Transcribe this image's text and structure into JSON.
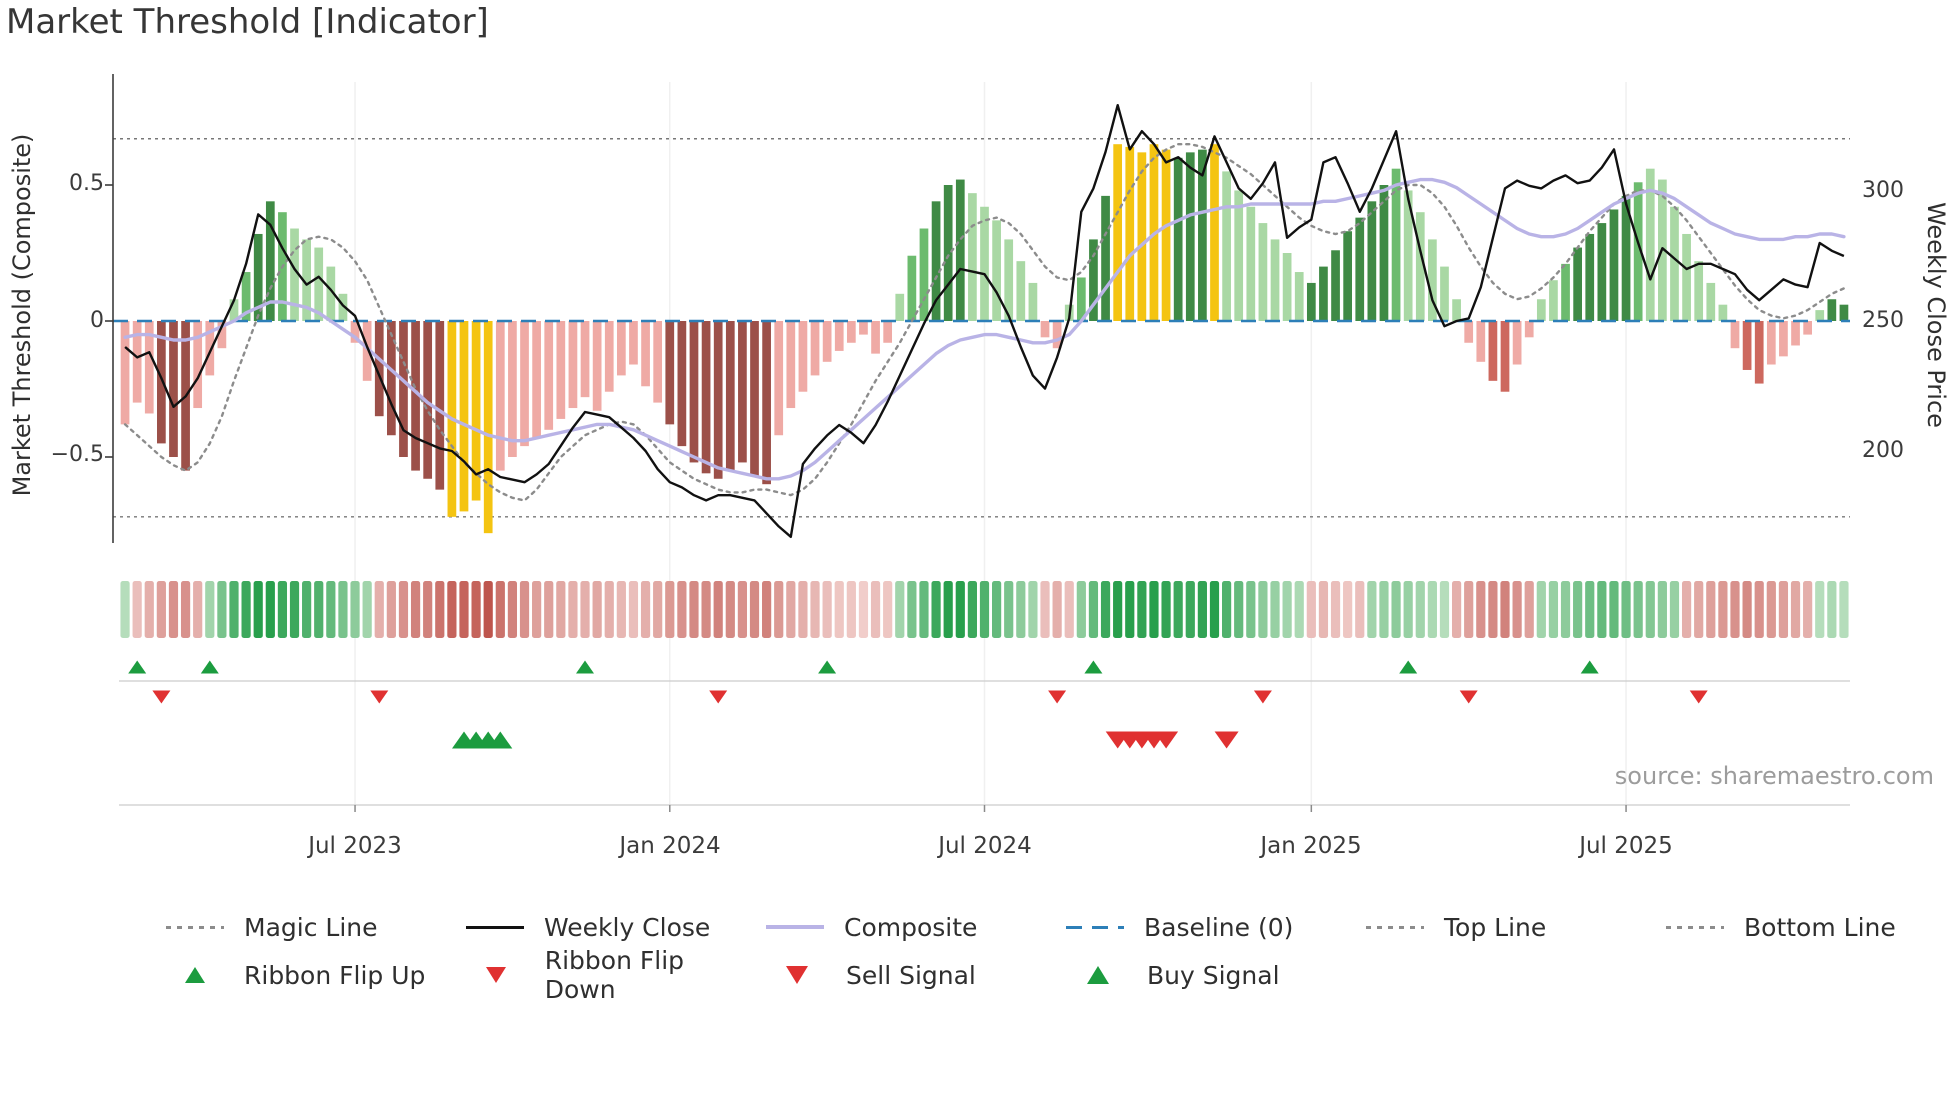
{
  "title": "Market Threshold [Indicator]",
  "source": "source: sharemaestro.com",
  "axes": {
    "left_label": "Market Threshold (Composite)",
    "right_label": "Weekly Close Price",
    "left_ticks": [
      "0.5",
      "0",
      "−0.5"
    ],
    "right_ticks": [
      "300",
      "250",
      "200"
    ],
    "x_ticks": [
      "Jul 2023",
      "Jan 2024",
      "Jul 2024",
      "Jan 2025",
      "Jul 2025"
    ]
  },
  "legend": {
    "row1": [
      {
        "label": "Magic Line"
      },
      {
        "label": "Weekly Close"
      },
      {
        "label": "Composite"
      },
      {
        "label": "Baseline (0)"
      },
      {
        "label": "Top Line"
      },
      {
        "label": "Bottom Line"
      }
    ],
    "row2": [
      {
        "label": "Ribbon Flip Up"
      },
      {
        "label": "Ribbon Flip Down"
      },
      {
        "label": "Sell Signal"
      },
      {
        "label": "Buy Signal"
      }
    ]
  },
  "colors": {
    "bar_pink": "#efaaa5",
    "bar_red": "#cd685e",
    "bar_brown": "#9c5049",
    "bar_yellow": "#f4c411",
    "bar_lgreen": "#a9d8a4",
    "bar_mgreen": "#6cbb6e",
    "bar_dgreen": "#3f8a45",
    "weekly_close": "#111111",
    "composite": "#b9b3e6",
    "magic_line": "#8c8c8c",
    "baseline": "#2d7fb8",
    "guide_line": "#777777",
    "ribbon_green": "#14963c",
    "ribbon_green_light": "#ddefdb",
    "ribbon_red": "#b8463d",
    "ribbon_red_light": "#f7dcda",
    "signal_green": "#1c9c3f",
    "signal_red": "#e03131"
  },
  "chart_data": {
    "type": "bar",
    "subtype": "bar+line combo indicator with heatmap ribbon and signal markers",
    "title": "Market Threshold [Indicator]",
    "ylabel_left": "Market Threshold (Composite)",
    "ylabel_right": "Weekly Close Price",
    "frequency": "weekly",
    "weeks": 143,
    "x_range": [
      "Feb 2023",
      "Nov 2025"
    ],
    "x_tick_labels": [
      "Jul 2023",
      "Jan 2024",
      "Jul 2024",
      "Jan 2025",
      "Jul 2025"
    ],
    "x_tick_weeks": [
      19,
      45,
      71,
      98,
      124
    ],
    "left_axis_ticks": [
      0.5,
      0,
      -0.5
    ],
    "right_axis_ticks": [
      300,
      250,
      200
    ],
    "left_axis_range": [
      -0.88,
      0.88
    ],
    "right_axis_range": [
      160,
      340
    ],
    "baseline": 0,
    "top_line": 0.67,
    "bottom_line": -0.72,
    "threshold_bars": {
      "values": [
        -0.38,
        -0.3,
        -0.34,
        -0.45,
        -0.5,
        -0.55,
        -0.32,
        -0.2,
        -0.1,
        0.08,
        0.18,
        0.32,
        0.44,
        0.4,
        0.34,
        0.3,
        0.27,
        0.2,
        0.1,
        -0.08,
        -0.22,
        -0.35,
        -0.42,
        -0.5,
        -0.55,
        -0.58,
        -0.62,
        -0.72,
        -0.7,
        -0.66,
        -0.78,
        -0.55,
        -0.5,
        -0.46,
        -0.43,
        -0.4,
        -0.36,
        -0.32,
        -0.28,
        -0.33,
        -0.26,
        -0.2,
        -0.16,
        -0.24,
        -0.3,
        -0.38,
        -0.46,
        -0.52,
        -0.56,
        -0.58,
        -0.55,
        -0.52,
        -0.57,
        -0.6,
        -0.42,
        -0.32,
        -0.26,
        -0.2,
        -0.15,
        -0.11,
        -0.08,
        -0.05,
        -0.12,
        -0.08,
        0.1,
        0.24,
        0.34,
        0.44,
        0.5,
        0.52,
        0.47,
        0.42,
        0.37,
        0.3,
        0.22,
        0.14,
        -0.06,
        -0.1,
        0.06,
        0.16,
        0.3,
        0.46,
        0.65,
        0.64,
        0.62,
        0.65,
        0.63,
        0.6,
        0.62,
        0.63,
        0.65,
        0.55,
        0.48,
        0.42,
        0.36,
        0.3,
        0.25,
        0.18,
        0.14,
        0.2,
        0.26,
        0.33,
        0.38,
        0.44,
        0.5,
        0.56,
        0.48,
        0.4,
        0.3,
        0.2,
        0.08,
        -0.08,
        -0.15,
        -0.22,
        -0.26,
        -0.16,
        -0.06,
        0.08,
        0.15,
        0.21,
        0.27,
        0.32,
        0.36,
        0.41,
        0.46,
        0.51,
        0.56,
        0.52,
        0.42,
        0.32,
        0.22,
        0.14,
        0.06,
        -0.1,
        -0.18,
        -0.23,
        -0.16,
        -0.13,
        -0.09,
        -0.05,
        0.04,
        0.08,
        0.06
      ],
      "colors": [
        "pink",
        "pink",
        "pink",
        "brown",
        "brown",
        "brown",
        "pink",
        "pink",
        "pink",
        "lgreen",
        "mgreen",
        "dgreen",
        "dgreen",
        "mgreen",
        "lgreen",
        "lgreen",
        "lgreen",
        "lgreen",
        "lgreen",
        "pink",
        "pink",
        "brown",
        "brown",
        "brown",
        "brown",
        "brown",
        "brown",
        "yellow",
        "yellow",
        "yellow",
        "yellow",
        "pink",
        "pink",
        "pink",
        "pink",
        "pink",
        "pink",
        "pink",
        "pink",
        "pink",
        "pink",
        "pink",
        "pink",
        "pink",
        "pink",
        "brown",
        "brown",
        "brown",
        "brown",
        "brown",
        "brown",
        "brown",
        "brown",
        "brown",
        "pink",
        "pink",
        "pink",
        "pink",
        "pink",
        "pink",
        "pink",
        "pink",
        "pink",
        "pink",
        "lgreen",
        "mgreen",
        "mgreen",
        "dgreen",
        "dgreen",
        "dgreen",
        "lgreen",
        "lgreen",
        "lgreen",
        "lgreen",
        "lgreen",
        "lgreen",
        "pink",
        "pink",
        "lgreen",
        "mgreen",
        "dgreen",
        "dgreen",
        "yellow",
        "yellow",
        "yellow",
        "yellow",
        "yellow",
        "dgreen",
        "dgreen",
        "dgreen",
        "yellow",
        "lgreen",
        "lgreen",
        "lgreen",
        "lgreen",
        "lgreen",
        "lgreen",
        "lgreen",
        "dgreen",
        "dgreen",
        "dgreen",
        "dgreen",
        "dgreen",
        "dgreen",
        "dgreen",
        "mgreen",
        "lgreen",
        "lgreen",
        "lgreen",
        "lgreen",
        "lgreen",
        "pink",
        "pink",
        "red",
        "red",
        "pink",
        "pink",
        "lgreen",
        "lgreen",
        "mgreen",
        "dgreen",
        "dgreen",
        "dgreen",
        "dgreen",
        "dgreen",
        "mgreen",
        "lgreen",
        "lgreen",
        "lgreen",
        "lgreen",
        "lgreen",
        "lgreen",
        "lgreen",
        "pink",
        "red",
        "red",
        "pink",
        "pink",
        "pink",
        "pink",
        "lgreen",
        "dgreen",
        "dgreen"
      ]
    },
    "weekly_close": {
      "values": [
        240,
        236,
        238,
        228,
        217,
        221,
        228,
        238,
        248,
        258,
        272,
        291,
        287,
        278,
        270,
        264,
        267,
        262,
        256,
        252,
        240,
        229,
        218,
        208,
        205,
        203,
        201,
        200,
        196,
        191,
        193,
        190,
        189,
        188,
        191,
        195,
        202,
        209,
        215,
        214,
        213,
        209,
        205,
        200,
        193,
        188,
        186,
        183,
        181,
        183,
        183,
        182,
        181,
        176,
        171,
        167,
        195,
        201,
        206,
        210,
        207,
        203,
        210,
        219,
        229,
        239,
        249,
        258,
        264,
        270,
        269,
        268,
        261,
        252,
        240,
        229,
        224,
        236,
        251,
        292,
        301,
        315,
        333,
        316,
        323,
        318,
        311,
        313,
        309,
        306,
        321,
        311,
        301,
        297,
        303,
        311,
        282,
        286,
        289,
        311,
        313,
        303,
        292,
        301,
        312,
        323,
        297,
        277,
        258,
        248,
        250,
        251,
        263,
        282,
        301,
        304,
        302,
        301,
        304,
        306,
        303,
        304,
        309,
        316,
        295,
        280,
        266,
        278,
        274,
        270,
        272,
        272,
        270,
        268,
        262,
        258,
        262,
        266,
        264,
        263,
        280,
        277,
        275
      ]
    },
    "composite": {
      "values": [
        -0.06,
        -0.05,
        -0.05,
        -0.06,
        -0.07,
        -0.07,
        -0.06,
        -0.04,
        -0.02,
        0.0,
        0.03,
        0.05,
        0.07,
        0.07,
        0.06,
        0.05,
        0.03,
        0.0,
        -0.03,
        -0.06,
        -0.1,
        -0.14,
        -0.18,
        -0.22,
        -0.26,
        -0.3,
        -0.33,
        -0.36,
        -0.38,
        -0.4,
        -0.42,
        -0.43,
        -0.44,
        -0.44,
        -0.43,
        -0.42,
        -0.41,
        -0.4,
        -0.39,
        -0.38,
        -0.38,
        -0.39,
        -0.4,
        -0.42,
        -0.44,
        -0.46,
        -0.48,
        -0.5,
        -0.52,
        -0.54,
        -0.55,
        -0.56,
        -0.57,
        -0.58,
        -0.58,
        -0.57,
        -0.55,
        -0.52,
        -0.48,
        -0.44,
        -0.4,
        -0.36,
        -0.32,
        -0.28,
        -0.24,
        -0.2,
        -0.16,
        -0.12,
        -0.09,
        -0.07,
        -0.06,
        -0.05,
        -0.05,
        -0.06,
        -0.07,
        -0.08,
        -0.08,
        -0.07,
        -0.05,
        0.0,
        0.06,
        0.12,
        0.18,
        0.24,
        0.28,
        0.32,
        0.35,
        0.37,
        0.39,
        0.4,
        0.41,
        0.42,
        0.42,
        0.43,
        0.43,
        0.43,
        0.43,
        0.43,
        0.43,
        0.44,
        0.44,
        0.45,
        0.46,
        0.47,
        0.48,
        0.5,
        0.51,
        0.52,
        0.52,
        0.51,
        0.49,
        0.46,
        0.43,
        0.4,
        0.37,
        0.34,
        0.32,
        0.31,
        0.31,
        0.32,
        0.34,
        0.37,
        0.4,
        0.43,
        0.45,
        0.47,
        0.48,
        0.47,
        0.45,
        0.42,
        0.39,
        0.36,
        0.34,
        0.32,
        0.31,
        0.3,
        0.3,
        0.3,
        0.31,
        0.31,
        0.32,
        0.32,
        0.31
      ]
    },
    "magic_line": {
      "values": [
        -0.38,
        -0.42,
        -0.46,
        -0.5,
        -0.53,
        -0.55,
        -0.52,
        -0.45,
        -0.35,
        -0.22,
        -0.1,
        0.02,
        0.12,
        0.2,
        0.26,
        0.3,
        0.31,
        0.3,
        0.27,
        0.22,
        0.15,
        0.05,
        -0.05,
        -0.15,
        -0.25,
        -0.33,
        -0.4,
        -0.46,
        -0.52,
        -0.56,
        -0.6,
        -0.63,
        -0.65,
        -0.66,
        -0.62,
        -0.56,
        -0.5,
        -0.46,
        -0.42,
        -0.4,
        -0.38,
        -0.37,
        -0.38,
        -0.42,
        -0.47,
        -0.52,
        -0.55,
        -0.58,
        -0.6,
        -0.62,
        -0.63,
        -0.63,
        -0.62,
        -0.62,
        -0.63,
        -0.64,
        -0.62,
        -0.58,
        -0.52,
        -0.45,
        -0.38,
        -0.3,
        -0.22,
        -0.15,
        -0.08,
        0.0,
        0.08,
        0.16,
        0.24,
        0.3,
        0.35,
        0.37,
        0.38,
        0.36,
        0.32,
        0.26,
        0.2,
        0.16,
        0.15,
        0.18,
        0.24,
        0.32,
        0.4,
        0.48,
        0.55,
        0.6,
        0.63,
        0.65,
        0.65,
        0.64,
        0.62,
        0.6,
        0.57,
        0.54,
        0.5,
        0.46,
        0.42,
        0.38,
        0.35,
        0.33,
        0.32,
        0.33,
        0.36,
        0.4,
        0.44,
        0.48,
        0.5,
        0.5,
        0.47,
        0.42,
        0.35,
        0.27,
        0.2,
        0.14,
        0.1,
        0.08,
        0.09,
        0.12,
        0.16,
        0.21,
        0.27,
        0.33,
        0.38,
        0.43,
        0.46,
        0.48,
        0.48,
        0.46,
        0.42,
        0.37,
        0.31,
        0.25,
        0.19,
        0.13,
        0.08,
        0.04,
        0.02,
        0.01,
        0.02,
        0.04,
        0.07,
        0.1,
        0.12
      ]
    },
    "ribbon": {
      "values": [
        0.2,
        -0.2,
        -0.3,
        -0.4,
        -0.5,
        -0.5,
        -0.3,
        0.3,
        0.5,
        0.7,
        0.8,
        0.9,
        0.9,
        0.8,
        0.8,
        0.7,
        0.7,
        0.6,
        0.5,
        0.4,
        0.3,
        -0.3,
        -0.4,
        -0.5,
        -0.6,
        -0.6,
        -0.7,
        -0.8,
        -0.8,
        -0.8,
        -0.9,
        -0.7,
        -0.6,
        -0.5,
        -0.4,
        -0.4,
        -0.35,
        -0.3,
        -0.3,
        -0.35,
        -0.3,
        -0.25,
        -0.2,
        -0.3,
        -0.35,
        -0.45,
        -0.5,
        -0.55,
        -0.55,
        -0.6,
        -0.55,
        -0.5,
        -0.55,
        -0.6,
        -0.45,
        -0.35,
        -0.3,
        -0.25,
        -0.2,
        -0.15,
        -0.15,
        -0.1,
        -0.2,
        -0.15,
        0.3,
        0.5,
        0.6,
        0.8,
        0.9,
        0.9,
        0.8,
        0.7,
        0.6,
        0.5,
        0.4,
        0.3,
        -0.2,
        -0.3,
        -0.2,
        0.4,
        0.6,
        0.8,
        0.9,
        0.9,
        0.85,
        0.9,
        0.85,
        0.8,
        0.8,
        0.85,
        0.9,
        0.7,
        0.6,
        0.5,
        0.4,
        0.35,
        0.3,
        0.25,
        -0.2,
        -0.25,
        -0.2,
        -0.15,
        -0.2,
        0.3,
        0.35,
        0.4,
        0.35,
        0.3,
        0.25,
        0.2,
        -0.3,
        -0.4,
        -0.5,
        -0.55,
        -0.6,
        -0.5,
        -0.4,
        0.3,
        0.35,
        0.4,
        0.5,
        0.55,
        0.6,
        0.6,
        0.55,
        0.5,
        0.45,
        0.4,
        0.35,
        -0.3,
        -0.35,
        -0.4,
        -0.45,
        -0.5,
        -0.55,
        -0.5,
        -0.45,
        -0.4,
        -0.35,
        -0.3,
        0.2,
        0.25,
        0.2
      ]
    },
    "signals": {
      "ribbon_flip_up_weeks": [
        1,
        7,
        38,
        58,
        80,
        106,
        121
      ],
      "ribbon_flip_down_weeks": [
        3,
        21,
        49,
        77,
        94,
        111,
        130
      ],
      "buy_signal_weeks": [
        28,
        29,
        30,
        31
      ],
      "sell_signal_weeks": [
        82,
        83,
        84,
        85,
        86,
        91
      ]
    }
  }
}
